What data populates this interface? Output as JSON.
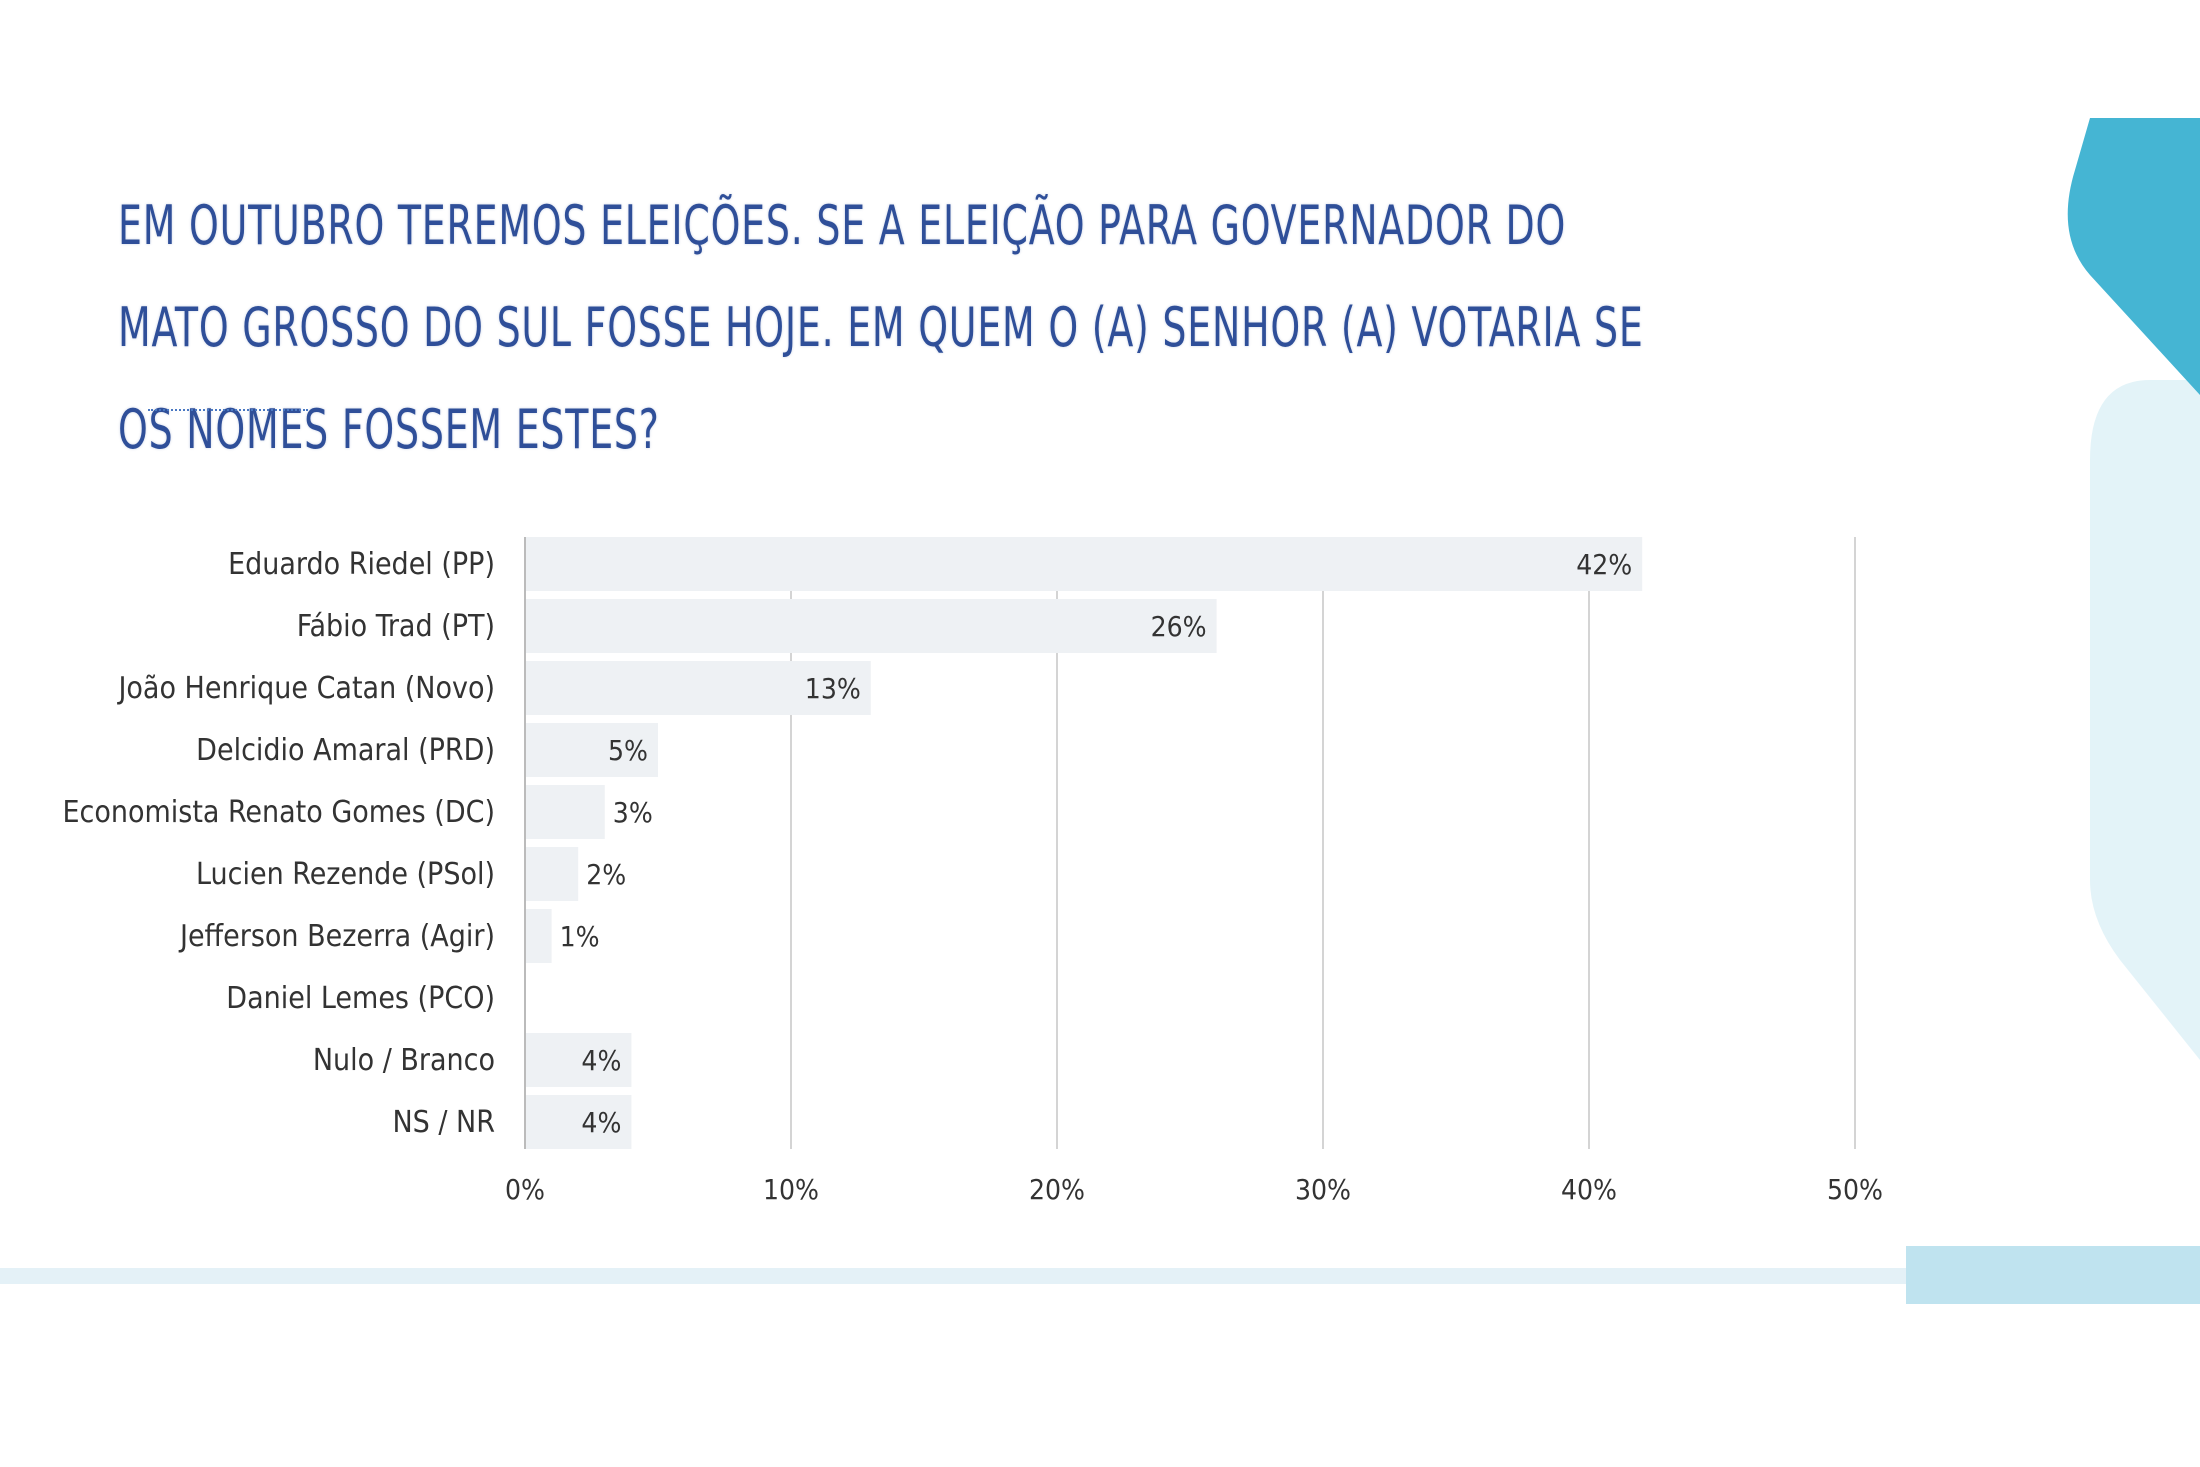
{
  "title": "Em outubro teremos eleições. Se a eleição para governador do Mato Grosso do Sul fosse hoje. em quem o (a) senhor (a) votaria se os nomes fossem estes?",
  "colors": {
    "title": "#2f4f99",
    "bar": "#eef1f4",
    "grid": "#d4d4d4",
    "label": "#333333",
    "decoration_dark": "#45b5d3",
    "decoration_light": "#e3f3f8"
  },
  "chart_data": {
    "type": "bar",
    "orientation": "horizontal",
    "categories": [
      "Eduardo Riedel (PP)",
      "Fábio Trad (PT)",
      "João Henrique Catan (Novo)",
      "Delcidio Amaral (PRD)",
      "Economista Renato Gomes (DC)",
      "Lucien Rezende (PSol)",
      "Jefferson Bezerra (Agir)",
      "Daniel Lemes (PCO)",
      "Nulo / Branco",
      "NS / NR"
    ],
    "values": [
      42,
      26,
      13,
      5,
      3,
      2,
      1,
      0,
      4,
      4
    ],
    "data_labels": [
      "42%",
      "26%",
      "13%",
      "5%",
      "3%",
      "2%",
      "1%",
      "",
      "4%",
      "4%"
    ],
    "xlim": [
      0,
      50
    ],
    "x_ticks": [
      0,
      10,
      20,
      30,
      40,
      50
    ],
    "x_tick_labels": [
      "0%",
      "10%",
      "20%",
      "30%",
      "40%",
      "50%"
    ],
    "grid": true,
    "legend": "none"
  }
}
